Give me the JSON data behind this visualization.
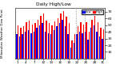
{
  "title": "Milwaukee Weather Dew Point",
  "subtitle": "Daily High/Low",
  "legend_high": "High",
  "legend_low": "Low",
  "color_high": "#ff0000",
  "color_low": "#0000ff",
  "background_color": "#ffffff",
  "ylim": [
    0,
    75
  ],
  "yticks": [
    10,
    20,
    30,
    40,
    50,
    60,
    70
  ],
  "days": [
    "1",
    "2",
    "3",
    "4",
    "5",
    "6",
    "7",
    "8",
    "9",
    "10",
    "11",
    "12",
    "13",
    "14",
    "15",
    "16",
    "17",
    "18",
    "19",
    "20",
    "21",
    "22",
    "23",
    "24",
    "25",
    "26",
    "27",
    "28",
    "29",
    "30",
    "31"
  ],
  "highs": [
    50,
    46,
    48,
    54,
    57,
    51,
    53,
    58,
    64,
    67,
    57,
    53,
    50,
    56,
    60,
    67,
    71,
    63,
    53,
    27,
    36,
    48,
    54,
    51,
    54,
    40,
    58,
    64,
    54,
    46,
    44
  ],
  "lows": [
    36,
    33,
    36,
    40,
    43,
    38,
    40,
    46,
    50,
    53,
    40,
    38,
    36,
    43,
    48,
    53,
    58,
    48,
    36,
    16,
    23,
    36,
    40,
    38,
    40,
    28,
    46,
    50,
    40,
    33,
    30
  ],
  "title_fontsize": 4.2,
  "tick_fontsize": 3.2,
  "xtick_fontsize": 3.0,
  "dotted_lines": [
    21,
    24
  ],
  "xlabel_step": 3,
  "bar_width": 0.4
}
